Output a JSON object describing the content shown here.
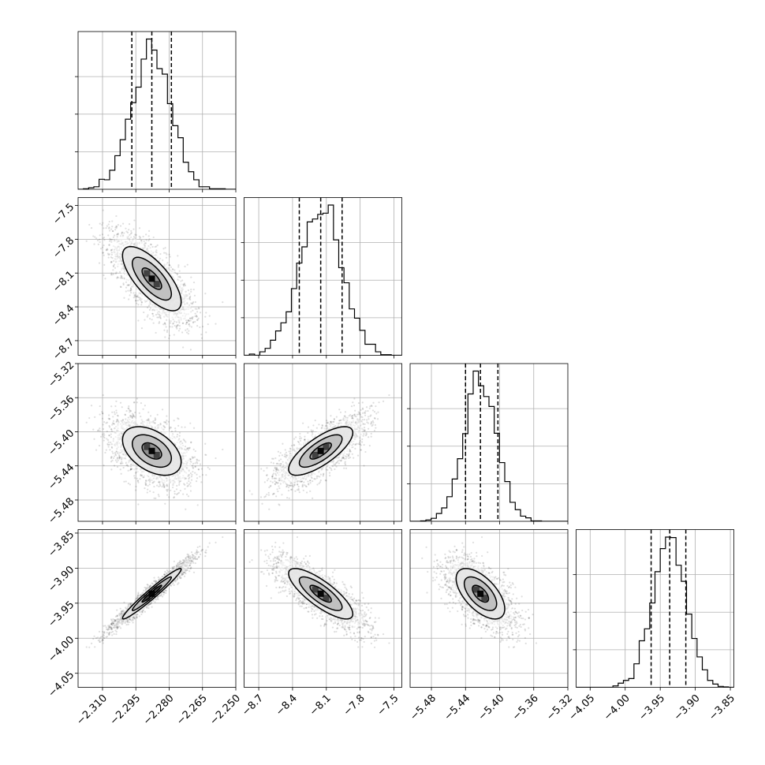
{
  "chart_data": {
    "type": "corner",
    "parameters": [
      {
        "range": [
          -2.321,
          -2.25
        ],
        "ticks": [
          -2.31,
          -2.295,
          -2.28,
          -2.265,
          -2.25
        ],
        "tick_labels": [
          "−2.310",
          "−2.295",
          "−2.280",
          "−2.265",
          "−2.250"
        ],
        "quantiles": [
          -2.2968,
          -2.2878,
          -2.279
        ]
      },
      {
        "range": [
          -8.83,
          -7.43
        ],
        "ticks": [
          -8.7,
          -8.4,
          -8.1,
          -7.8,
          -7.5
        ],
        "tick_labels": [
          "−8.7",
          "−8.4",
          "−8.1",
          "−7.8",
          "−7.5"
        ],
        "quantiles": [
          -8.34,
          -8.15,
          -7.96
        ]
      },
      {
        "range": [
          -5.505,
          -5.32
        ],
        "ticks": [
          -5.48,
          -5.44,
          -5.4,
          -5.36,
          -5.32
        ],
        "tick_labels": [
          "−5.48",
          "−5.44",
          "−5.40",
          "−5.36",
          "−5.32"
        ],
        "quantiles": [
          -5.44,
          -5.4225,
          -5.402
        ]
      },
      {
        "range": [
          -4.07,
          -3.845
        ],
        "ticks": [
          -4.05,
          -4.0,
          -3.95,
          -3.9,
          -3.85
        ],
        "tick_labels": [
          "−4.05",
          "−4.00",
          "−3.95",
          "−3.90",
          "−3.85"
        ],
        "quantiles": [
          -3.963,
          -3.9365,
          -3.9135
        ]
      }
    ],
    "correlations": [
      [
        1,
        -0.72,
        -0.45,
        0.97
      ],
      [
        -0.72,
        1,
        0.75,
        -0.8
      ],
      [
        -0.45,
        0.75,
        1,
        -0.6
      ],
      [
        0.97,
        -0.8,
        -0.6,
        1
      ]
    ],
    "means": [
      -2.2878,
      -8.15,
      -5.4225,
      -3.9365
    ],
    "sds": [
      0.0088,
      0.19,
      0.019,
      0.024
    ],
    "contour_levels_sigma": [
      0.5,
      1.0,
      1.5,
      2.0
    ],
    "grid": true,
    "colors": {
      "line": "#000000",
      "grid": "#b0b0b0",
      "density": "#000000"
    }
  }
}
